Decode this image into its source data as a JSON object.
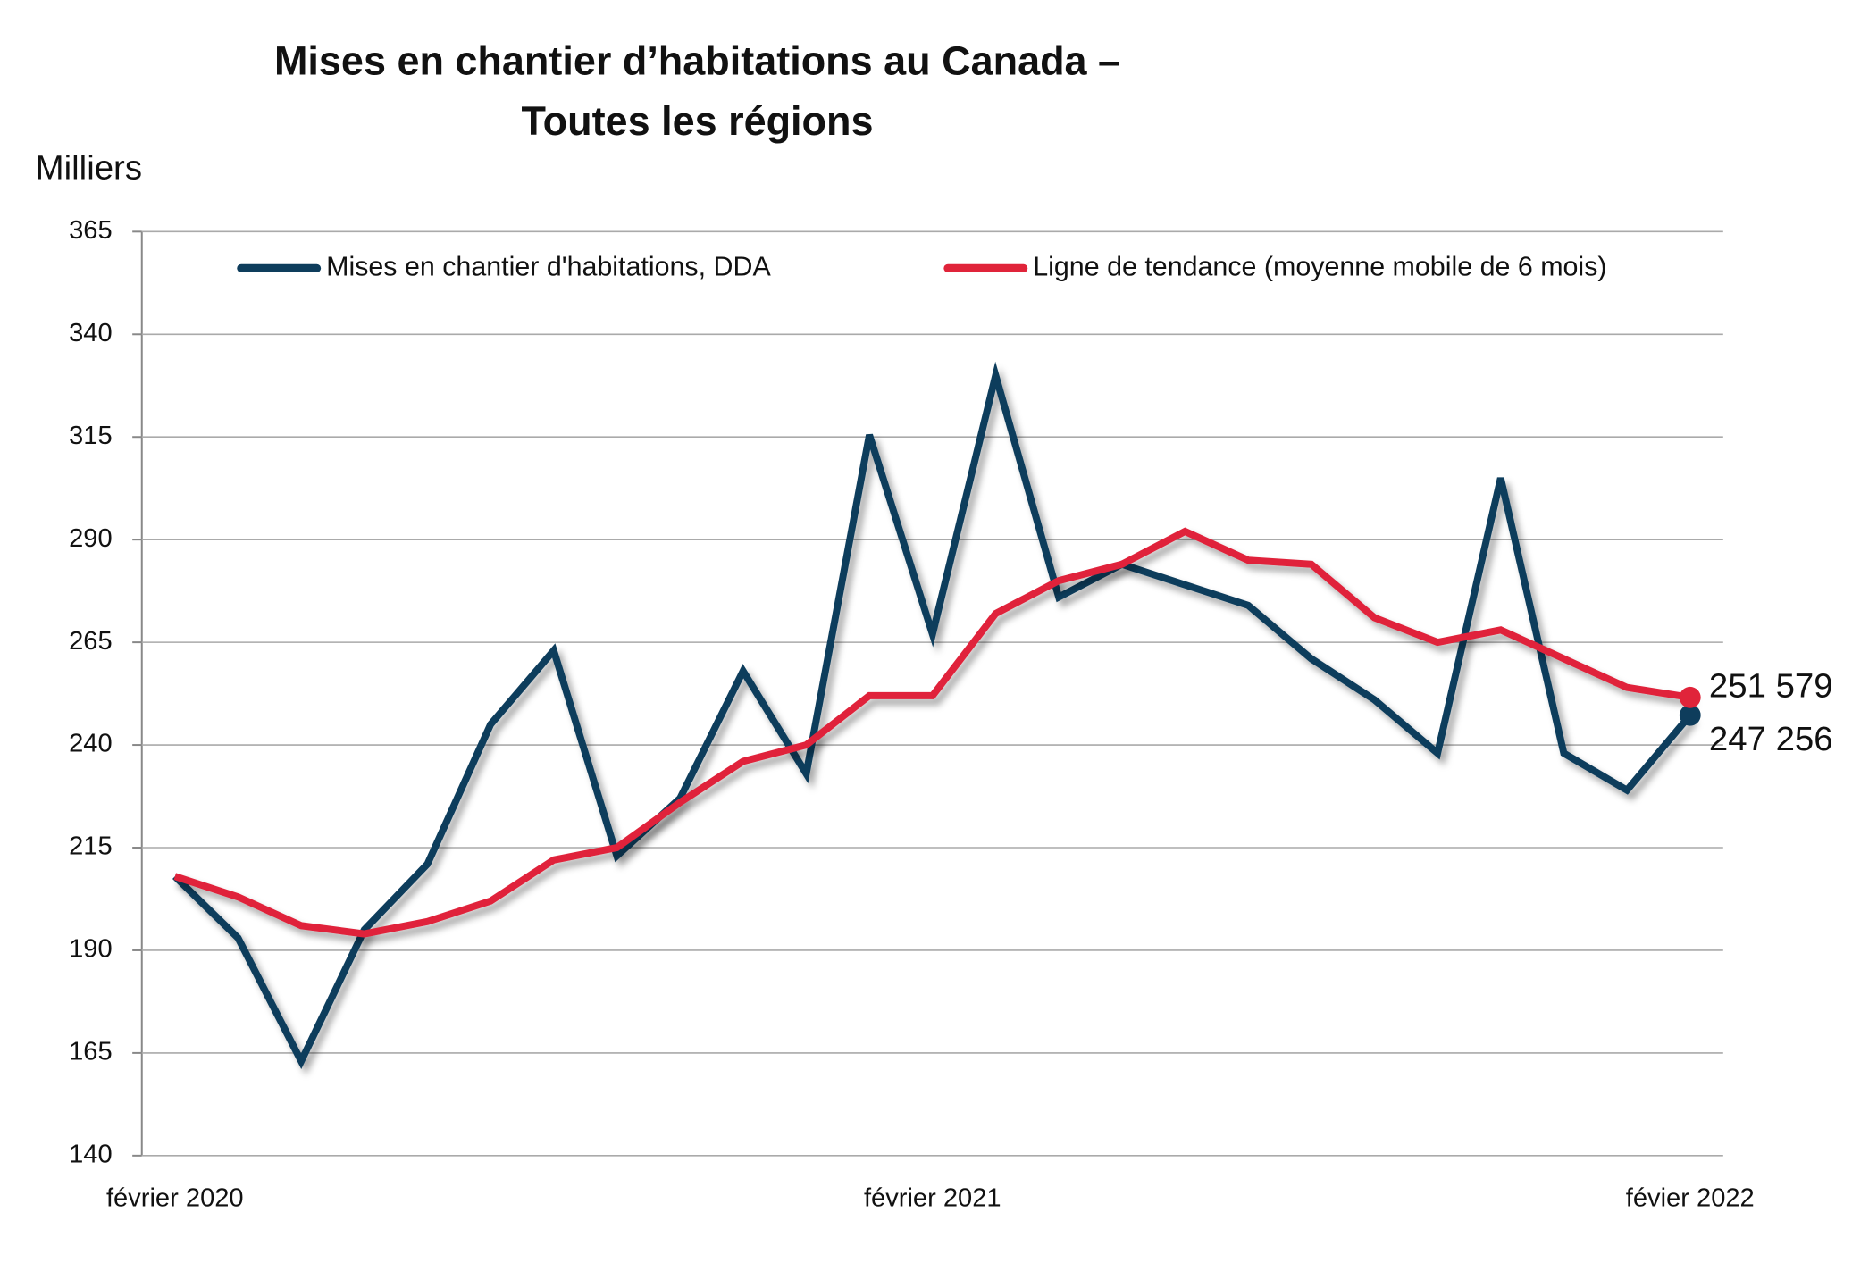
{
  "chart_data": {
    "type": "line",
    "title": [
      "Mises en chantier d’habitations au Canada –",
      "Toutes les régions"
    ],
    "y_label": "Milliers",
    "categories": [
      "février 2020",
      null,
      null,
      null,
      null,
      null,
      null,
      null,
      null,
      null,
      null,
      null,
      "février 2021",
      null,
      null,
      null,
      null,
      null,
      null,
      null,
      null,
      null,
      null,
      null,
      "févier 2022"
    ],
    "series": [
      {
        "name": "Mises en chantier d'habitations, DDA",
        "color": "#0e3d5c",
        "values": [
          208,
          193,
          163,
          195,
          211,
          245,
          263,
          213,
          227,
          258,
          233,
          315.5,
          267,
          330,
          276,
          284,
          279,
          274,
          261,
          251,
          238,
          305,
          238,
          229,
          247.256
        ],
        "value_labels": [
          null,
          null,
          null,
          null,
          null,
          null,
          null,
          null,
          null,
          null,
          null,
          null,
          null,
          null,
          null,
          null,
          null,
          null,
          null,
          null,
          null,
          null,
          null,
          null,
          "247 256"
        ]
      },
      {
        "name": "Ligne de tendance (moyenne mobile de 6 mois)",
        "color": "#e0243a",
        "values": [
          208,
          203,
          196,
          194,
          197,
          202,
          212,
          215,
          226,
          236,
          240,
          252,
          252,
          272,
          280,
          284,
          292,
          285,
          284,
          271,
          265,
          268,
          261,
          254,
          251.579
        ],
        "value_labels": [
          null,
          null,
          null,
          null,
          null,
          null,
          null,
          null,
          null,
          null,
          null,
          null,
          null,
          null,
          null,
          null,
          null,
          null,
          null,
          null,
          null,
          null,
          null,
          null,
          "251 579"
        ]
      }
    ],
    "ylim": [
      140,
      365
    ],
    "yticks": [
      140,
      165,
      190,
      215,
      240,
      265,
      290,
      315,
      340,
      365
    ],
    "grid": true,
    "legend": "top"
  }
}
